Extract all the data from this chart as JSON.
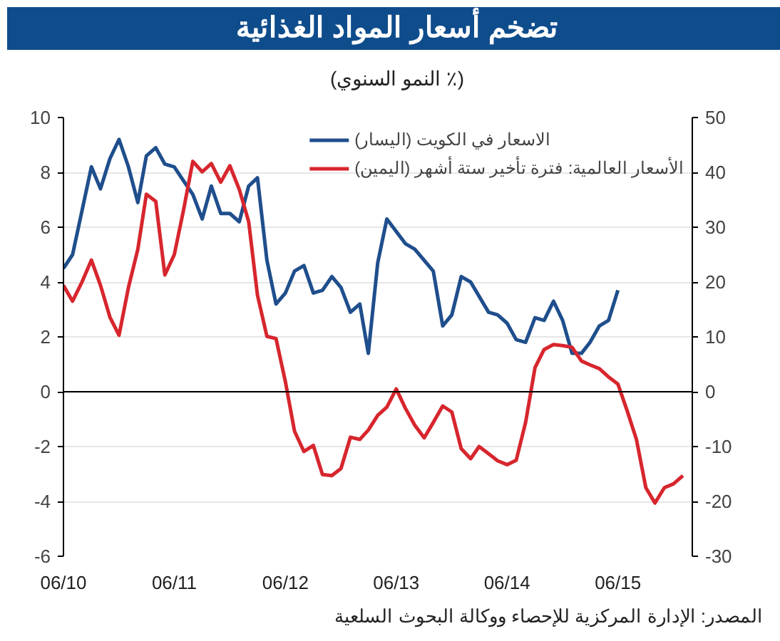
{
  "chart_data": {
    "type": "line",
    "title": "تضخم أسعار المواد الغذائية",
    "subtitle": "(٪ النمو السنوي)",
    "annotations": [
      "المصدر: الإدارة المركزية للإحصاء ووكالة البحوث السلعية"
    ],
    "series": [
      {
        "name": "الاسعار في الكويت (اليسار)",
        "color": "#1f4e8c",
        "x": [
          "2010-06",
          "2010-07",
          "2010-08",
          "2010-09",
          "2010-10",
          "2010-11",
          "2010-12",
          "2011-01",
          "2011-02",
          "2011-03",
          "2011-04",
          "2011-05",
          "2011-06",
          "2011-07",
          "2011-08",
          "2011-09",
          "2011-10",
          "2011-11",
          "2011-12",
          "2012-01",
          "2012-02",
          "2012-03",
          "2012-04",
          "2012-05",
          "2012-06",
          "2012-07",
          "2012-08",
          "2012-09",
          "2012-10",
          "2012-11",
          "2012-12",
          "2013-01",
          "2013-02",
          "2013-03",
          "2013-04",
          "2013-05",
          "2013-07",
          "2013-08",
          "2013-10",
          "2013-11",
          "2013-12",
          "2014-01",
          "2014-02",
          "2014-04",
          "2014-05",
          "2014-06",
          "2014-07",
          "2014-08",
          "2014-09",
          "2014-10",
          "2014-11",
          "2014-12",
          "2015-01",
          "2015-02",
          "2015-03",
          "2015-04",
          "2015-05",
          "2015-06"
        ],
        "values": [
          4.5,
          5.0,
          6.6,
          8.2,
          7.4,
          8.5,
          9.2,
          8.2,
          6.9,
          8.6,
          8.9,
          8.3,
          8.2,
          7.7,
          7.2,
          6.3,
          7.5,
          6.5,
          6.5,
          6.2,
          7.5,
          7.8,
          4.8,
          3.2,
          3.6,
          4.4,
          4.6,
          3.6,
          3.7,
          4.2,
          3.8,
          2.9,
          3.2,
          1.4,
          4.7,
          6.3,
          5.4,
          5.2,
          4.4,
          2.4,
          2.8,
          4.2,
          4.0,
          2.9,
          2.8,
          2.5,
          1.9,
          1.8,
          2.7,
          2.6,
          3.3,
          2.6,
          1.4,
          1.4,
          1.8,
          2.4,
          2.6,
          3.7
        ]
      },
      {
        "name": "الأسعار العالمية: فترة تأخير ستة أشهر (اليمين)",
        "color": "#d7262e",
        "axis": "y2",
        "x": [
          "2010-06",
          "2010-07",
          "2010-08",
          "2010-09",
          "2010-10",
          "2010-11",
          "2010-12",
          "2011-01",
          "2011-02",
          "2011-03",
          "2011-04",
          "2011-05",
          "2011-06",
          "2011-07",
          "2011-08",
          "2011-09",
          "2011-10",
          "2011-11",
          "2011-12",
          "2012-01",
          "2012-02",
          "2012-03",
          "2012-04",
          "2012-05",
          "2012-06",
          "2012-07",
          "2012-08",
          "2012-09",
          "2012-10",
          "2012-11",
          "2012-12",
          "2013-01",
          "2013-02",
          "2013-03",
          "2013-04",
          "2013-05",
          "2013-06",
          "2013-07",
          "2013-08",
          "2013-09",
          "2013-10",
          "2013-11",
          "2013-12",
          "2014-01",
          "2014-02",
          "2014-03",
          "2014-04",
          "2014-05",
          "2014-06",
          "2014-07",
          "2014-08",
          "2014-09",
          "2014-10",
          "2014-11",
          "2014-12",
          "2015-01",
          "2015-02",
          "2015-03",
          "2015-04",
          "2015-05",
          "2015-06",
          "2015-07",
          "2015-08",
          "2015-09",
          "2015-10",
          "2015-11",
          "2015-12",
          "2016-01"
        ],
        "values": [
          19.4,
          16.5,
          20,
          24,
          19.4,
          13.6,
          10.3,
          19,
          26,
          36,
          34.7,
          21.3,
          25,
          33,
          42,
          40.1,
          41.6,
          38.2,
          41.2,
          36.9,
          31,
          17.6,
          10.1,
          9.7,
          1.8,
          -7.2,
          -10.9,
          -9.8,
          -15.1,
          -15.3,
          -14,
          -8.3,
          -8.7,
          -7,
          -4.3,
          -2.8,
          0.5,
          -3,
          -6.1,
          -8.4,
          -5.6,
          -2.6,
          -3.7,
          -10.4,
          -12.2,
          -10,
          -11.3,
          -12.6,
          -13.3,
          -12.5,
          -5.6,
          4.4,
          7.7,
          8.6,
          8.4,
          8.1,
          5.6,
          4.9,
          4.2,
          2.7,
          1.4,
          -3.4,
          -8.7,
          -17.5,
          -20.3,
          -17.5,
          -16.8,
          -15.3
        ]
      }
    ],
    "xlim": [
      "2010-06",
      "2016-02"
    ],
    "xticks": [
      {
        "value": "2010-06",
        "label": "06/10"
      },
      {
        "value": "2011-06",
        "label": "06/11"
      },
      {
        "value": "2012-06",
        "label": "06/12"
      },
      {
        "value": "2013-06",
        "label": "06/13"
      },
      {
        "value": "2014-06",
        "label": "06/14"
      },
      {
        "value": "2015-06",
        "label": "06/15"
      }
    ],
    "ylim": [
      -6,
      10
    ],
    "yticks": [
      -6,
      -4,
      -2,
      0,
      2,
      4,
      6,
      8,
      10
    ],
    "y2lim": [
      -30,
      50
    ],
    "y2ticks": [
      -30,
      -20,
      -10,
      0,
      10,
      20,
      30,
      40,
      50
    ],
    "ref_lines": [
      {
        "axis": "y",
        "value": 0,
        "color": "#000000"
      }
    ],
    "grid": "y",
    "legend": "top right",
    "line_style": "solid",
    "marker": "none"
  }
}
